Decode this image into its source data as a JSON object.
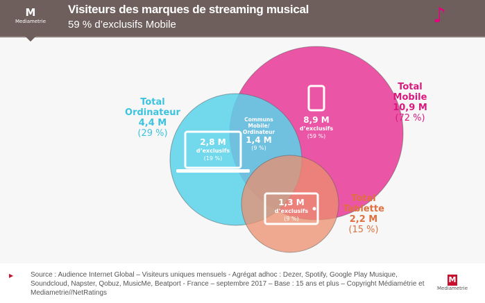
{
  "header": {
    "logo_text": "Mediametrie",
    "title": "Visiteurs  des marques de streaming musical",
    "subtitle": "59 % d’exclusifs Mobile",
    "icon": "music-note-icon"
  },
  "colors": {
    "ordinateur": "#5bd2ea",
    "mobile": "#e8409a",
    "tablette": "#ec8f6e",
    "header": "#6e5f5c"
  },
  "venn": {
    "ordinateur": {
      "label1": "Total",
      "label2": "Ordinateur",
      "value": "4,4 M",
      "pct": "(29 %)",
      "excl_value": "2,8 M",
      "excl_label": "d’exclusifs",
      "excl_pct": "(19 %)",
      "icon": "laptop-icon"
    },
    "mobile": {
      "label1": "Total",
      "label2": "Mobile",
      "value": "10,9 M",
      "pct": "(72 %)",
      "excl_value": "8,9 M",
      "excl_label": "d’exclusifs",
      "excl_pct": "(59 %)",
      "icon": "smartphone-icon"
    },
    "tablette": {
      "label1": "Total",
      "label2": "Tablette",
      "value": "2,2 M",
      "pct": "(15 %)",
      "excl_value": "1,3 M",
      "excl_label": "d’exclusifs",
      "excl_pct": "(9 %)",
      "icon": "tablet-icon"
    },
    "commun": {
      "l1": "Communs",
      "l2": "Mobile/",
      "l3": "Ordinateur",
      "value": "1,4 M",
      "pct": "(9 %)"
    }
  },
  "footer": {
    "source": "Source : Audience Internet Global – Visiteurs uniques mensuels - Agrégat adhoc : Dezer, Spotify, Google Play Musique, Soundcloud,  Napster, Qobuz, MusicMe, Beatport - France – septembre 2017 – Base : 15 ans et plus – Copyright  Médiamétrie et Mediametrie//NetRatings",
    "logo_text": "Mediametrie"
  }
}
